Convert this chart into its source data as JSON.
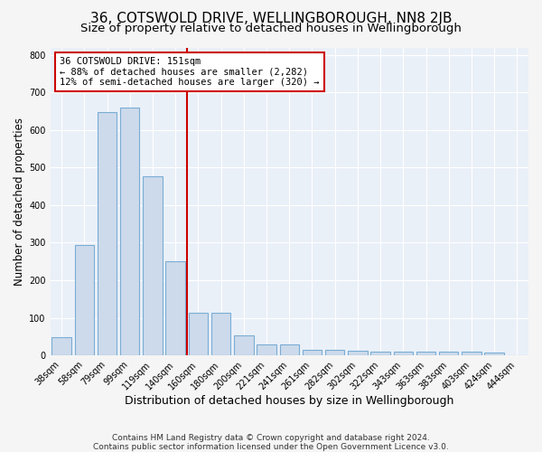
{
  "title": "36, COTSWOLD DRIVE, WELLINGBOROUGH, NN8 2JB",
  "subtitle": "Size of property relative to detached houses in Wellingborough",
  "xlabel": "Distribution of detached houses by size in Wellingborough",
  "ylabel": "Number of detached properties",
  "bar_labels": [
    "38sqm",
    "58sqm",
    "79sqm",
    "99sqm",
    "119sqm",
    "140sqm",
    "160sqm",
    "180sqm",
    "200sqm",
    "221sqm",
    "241sqm",
    "261sqm",
    "282sqm",
    "302sqm",
    "322sqm",
    "343sqm",
    "363sqm",
    "383sqm",
    "403sqm",
    "424sqm",
    "444sqm"
  ],
  "bar_values": [
    48,
    293,
    648,
    660,
    478,
    250,
    113,
    113,
    52,
    28,
    28,
    15,
    15,
    12,
    10,
    10,
    10,
    10,
    10,
    8,
    0
  ],
  "bar_color": "#ccdaeb",
  "bar_edge_color": "#7aadd4",
  "plot_bg_color": "#eaf0f8",
  "fig_bg_color": "#f5f5f5",
  "grid_color": "#ffffff",
  "red_line_x": 5.5,
  "annotation_title": "36 COTSWOLD DRIVE: 151sqm",
  "annotation_line1": "← 88% of detached houses are smaller (2,282)",
  "annotation_line2": "12% of semi-detached houses are larger (320) →",
  "annotation_box_facecolor": "#ffffff",
  "annotation_border_color": "#cc0000",
  "red_line_color": "#cc0000",
  "ylim": [
    0,
    820
  ],
  "yticks": [
    0,
    100,
    200,
    300,
    400,
    500,
    600,
    700,
    800
  ],
  "footer": "Contains HM Land Registry data © Crown copyright and database right 2024.\nContains public sector information licensed under the Open Government Licence v3.0.",
  "title_fontsize": 11,
  "subtitle_fontsize": 9.5,
  "xlabel_fontsize": 9,
  "ylabel_fontsize": 8.5,
  "tick_fontsize": 7,
  "annotation_fontsize": 7.5,
  "footer_fontsize": 6.5
}
